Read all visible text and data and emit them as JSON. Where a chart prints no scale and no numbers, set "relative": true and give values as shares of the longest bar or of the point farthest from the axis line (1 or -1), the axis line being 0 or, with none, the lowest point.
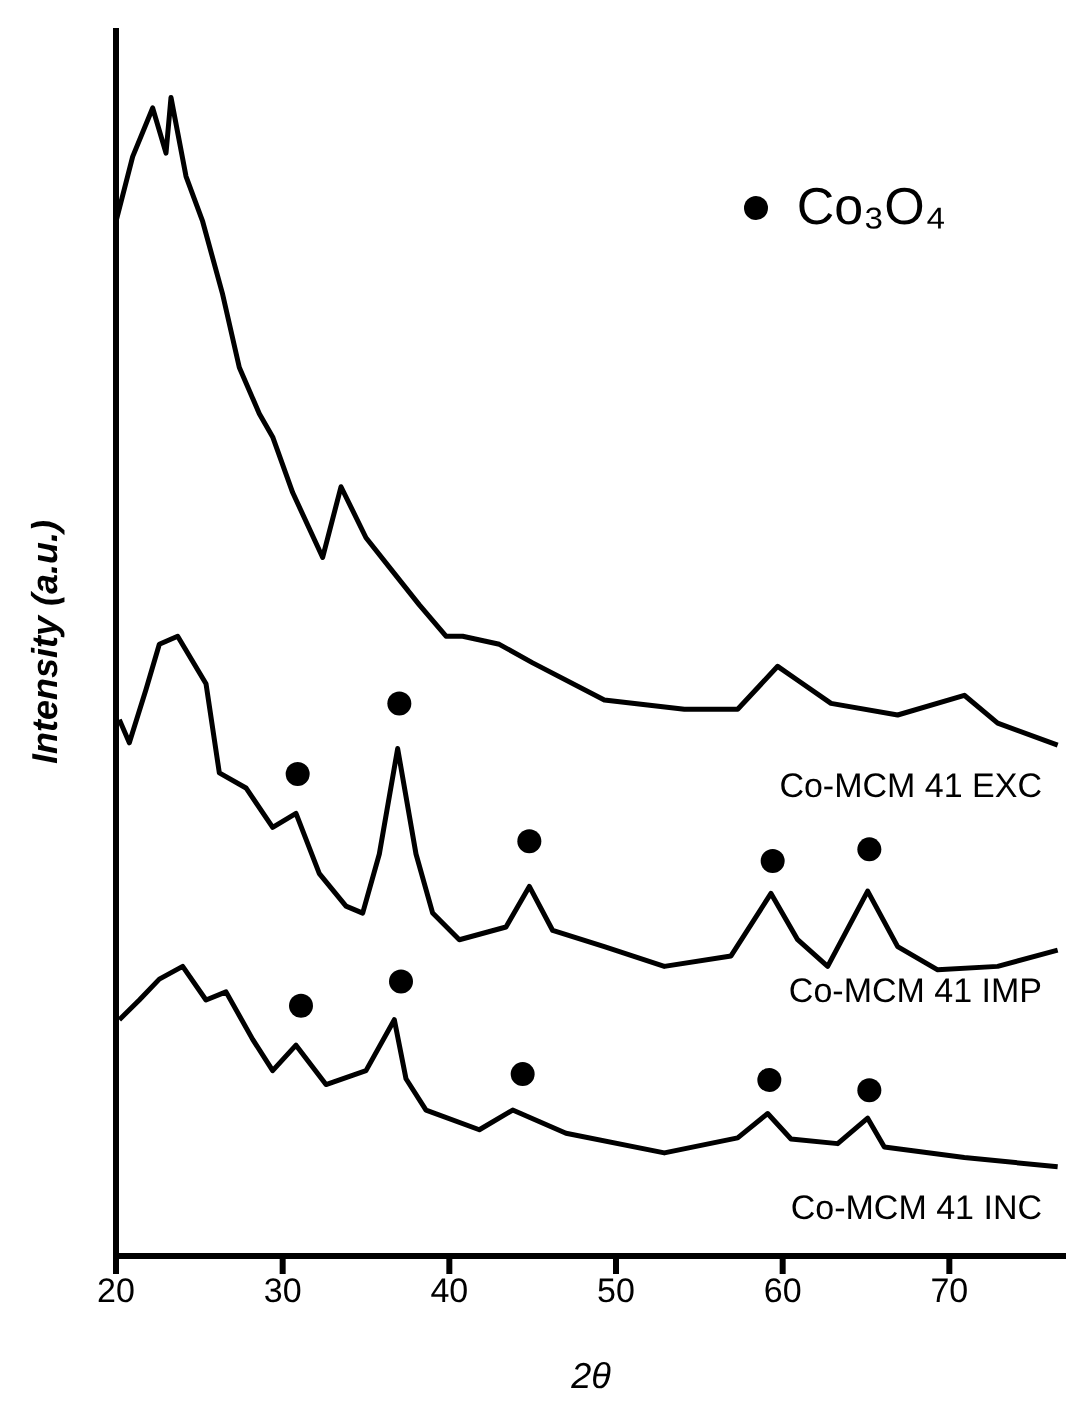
{
  "chart_data": {
    "type": "line",
    "xlabel": "2θ",
    "ylabel": "Intensity (a.u.)",
    "relative": true,
    "xlim": [
      20,
      77
    ],
    "xticks": [
      20,
      30,
      40,
      50,
      60,
      70
    ],
    "legend": "top right",
    "grid": false,
    "series": [
      {
        "name": "Co-MCM 41 EXC",
        "color": "#000000",
        "x": [
          20.0,
          21.0,
          22.2,
          23.0,
          23.3,
          24.2,
          25.2,
          26.4,
          27.4,
          28.6,
          29.4,
          30.6,
          32.4,
          33.5,
          35.0,
          36.6,
          38.2,
          39.8,
          40.8,
          43.0,
          45.0,
          49.3,
          54.1,
          57.3,
          59.7,
          60.9,
          62.9,
          66.9,
          70.9,
          72.9,
          76.5
        ],
        "values": [
          0.893,
          0.949,
          0.991,
          0.952,
          1.0,
          0.932,
          0.893,
          0.83,
          0.767,
          0.727,
          0.707,
          0.659,
          0.603,
          0.664,
          0.62,
          0.591,
          0.562,
          0.535,
          0.535,
          0.528,
          0.512,
          0.48,
          0.472,
          0.472,
          0.509,
          0.497,
          0.477,
          0.467,
          0.484,
          0.46,
          0.441
        ]
      },
      {
        "name": "Co-MCM 41 IMP",
        "color": "#000000",
        "x": [
          20.2,
          20.8,
          21.8,
          22.6,
          23.7,
          25.4,
          26.2,
          27.8,
          29.4,
          30.8,
          32.2,
          33.8,
          34.8,
          35.8,
          36.9,
          38.0,
          39.0,
          40.6,
          43.4,
          44.8,
          46.2,
          49.3,
          52.9,
          56.9,
          59.3,
          60.9,
          62.7,
          65.1,
          66.9,
          69.3,
          72.9,
          76.5
        ],
        "values": [
          0.463,
          0.443,
          0.489,
          0.528,
          0.535,
          0.494,
          0.417,
          0.404,
          0.37,
          0.382,
          0.33,
          0.302,
          0.296,
          0.347,
          0.438,
          0.347,
          0.296,
          0.273,
          0.284,
          0.319,
          0.281,
          0.267,
          0.25,
          0.259,
          0.313,
          0.273,
          0.25,
          0.315,
          0.267,
          0.247,
          0.25,
          0.264
        ]
      },
      {
        "name": "Co-MCM 41 INC",
        "color": "#000000",
        "x": [
          20.2,
          21.4,
          22.6,
          24.0,
          25.4,
          26.6,
          28.2,
          29.4,
          30.8,
          32.6,
          35.0,
          36.7,
          37.4,
          38.6,
          41.8,
          43.8,
          47.0,
          52.9,
          57.3,
          59.1,
          60.5,
          63.3,
          65.1,
          66.1,
          70.9,
          76.5
        ],
        "values": [
          0.204,
          0.221,
          0.239,
          0.25,
          0.221,
          0.228,
          0.187,
          0.16,
          0.182,
          0.148,
          0.16,
          0.204,
          0.153,
          0.126,
          0.109,
          0.126,
          0.106,
          0.089,
          0.102,
          0.123,
          0.101,
          0.097,
          0.119,
          0.094,
          0.085,
          0.077
        ]
      },
      {
        "type": "scatter",
        "name": "Co₃O₄",
        "color": "#000000",
        "marker": "circle",
        "x": [
          30.9,
          37.0,
          44.8,
          59.4,
          65.2,
          31.1,
          37.1,
          44.4,
          59.2,
          65.2
        ],
        "values": [
          0.416,
          0.477,
          0.358,
          0.341,
          0.351,
          0.216,
          0.237,
          0.157,
          0.152,
          0.143
        ]
      }
    ]
  }
}
